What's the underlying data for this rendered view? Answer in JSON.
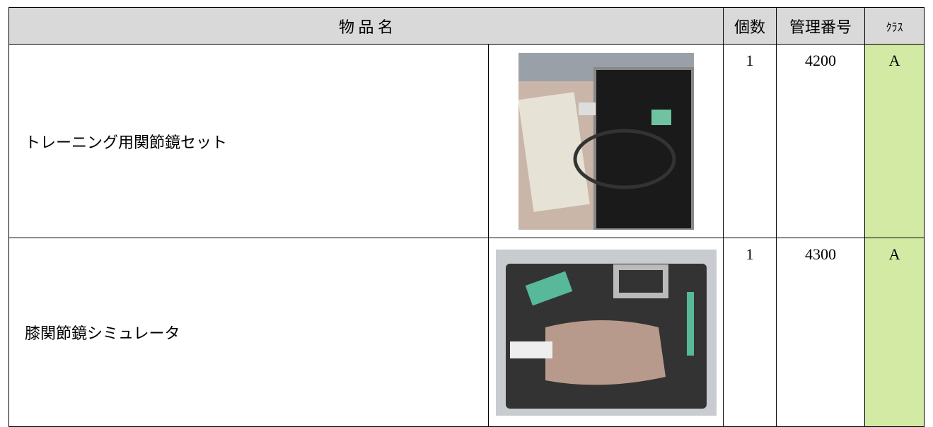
{
  "table": {
    "header": {
      "name": "物 品 名",
      "count": "個数",
      "number": "管理番号",
      "class": "ｸﾗｽ"
    },
    "rows": [
      {
        "name": "トレーニング用関節鏡セット",
        "count": 1,
        "number": 4200,
        "class": "A"
      },
      {
        "name": "膝関節鏡シミュレータ",
        "count": 1,
        "number": 4300,
        "class": "A"
      }
    ]
  }
}
